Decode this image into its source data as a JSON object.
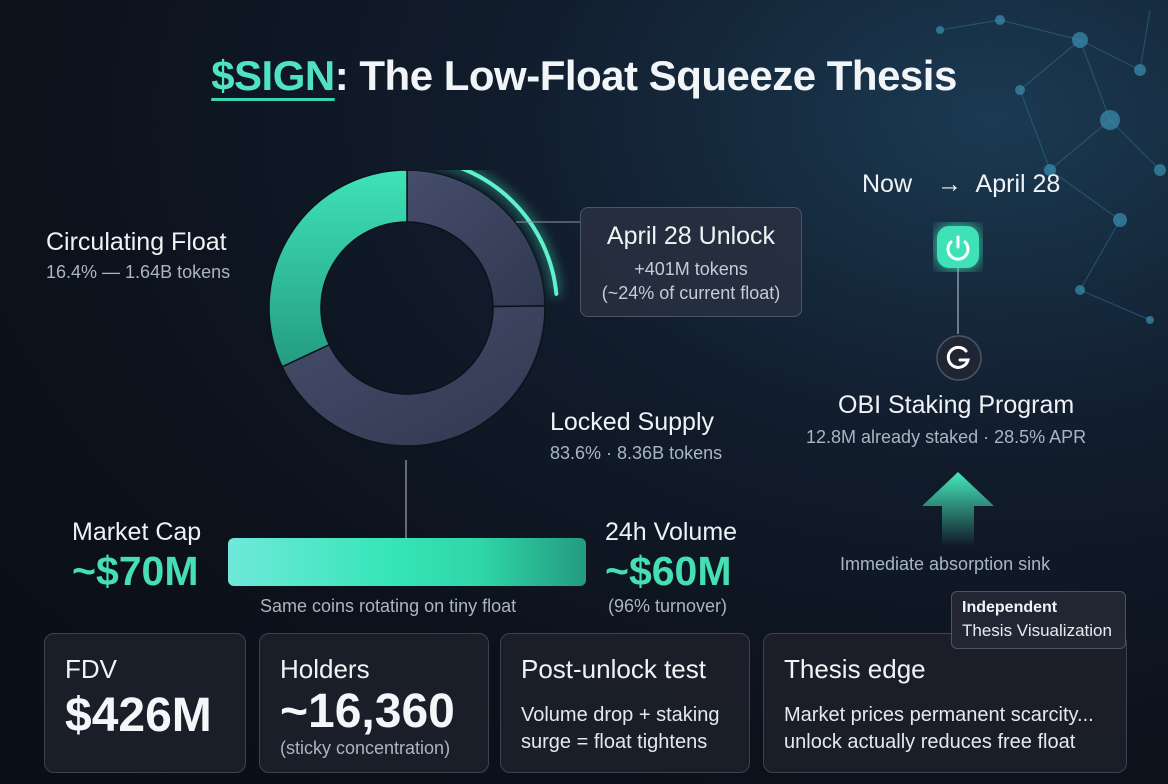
{
  "title": {
    "ticker": "$SIGN",
    "rest": ": The Low-Float Squeeze Thesis"
  },
  "donut": {
    "circulating": {
      "label": "Circulating Float",
      "detail": "16.4% — 1.64B tokens",
      "percent": 16.4
    },
    "locked": {
      "label": "Locked Supply",
      "detail": "83.6% · 8.36B tokens",
      "percent": 83.6
    },
    "unlock_callout": {
      "title": "April 28 Unlock",
      "line1": "+401M tokens",
      "line2": "(~24% of current float)"
    }
  },
  "timeline": {
    "now": "Now",
    "arrow": "→",
    "date": "April 28",
    "program_title": "OBI Staking Program",
    "program_detail": "12.8M already staked · 28.5% APR",
    "sink_label": "Immediate absorption sink"
  },
  "market": {
    "cap_label": "Market Cap",
    "cap_value": "~$70M",
    "volume_label": "24h Volume",
    "volume_value": "~$60M",
    "volume_note": "(96% turnover)",
    "bar_caption": "Same coins rotating on tiny float"
  },
  "cards": [
    {
      "title": "FDV",
      "value": "$426M"
    },
    {
      "title": "Holders",
      "value": "~16,360",
      "note": "(sticky concentration)"
    },
    {
      "title": "Post-unlock test",
      "line1": "Volume drop + staking",
      "line2": "surge = float tightens"
    },
    {
      "title": "Thesis edge",
      "line1": "Market prices permanent scarcity...",
      "line2": "unlock actually reduces free float"
    }
  ],
  "badge": {
    "line1": "Independent",
    "line2": "Thesis Visualization"
  },
  "colors": {
    "accent": "#46dfb3",
    "locked": "#3d4560",
    "background": "#0d1119"
  }
}
